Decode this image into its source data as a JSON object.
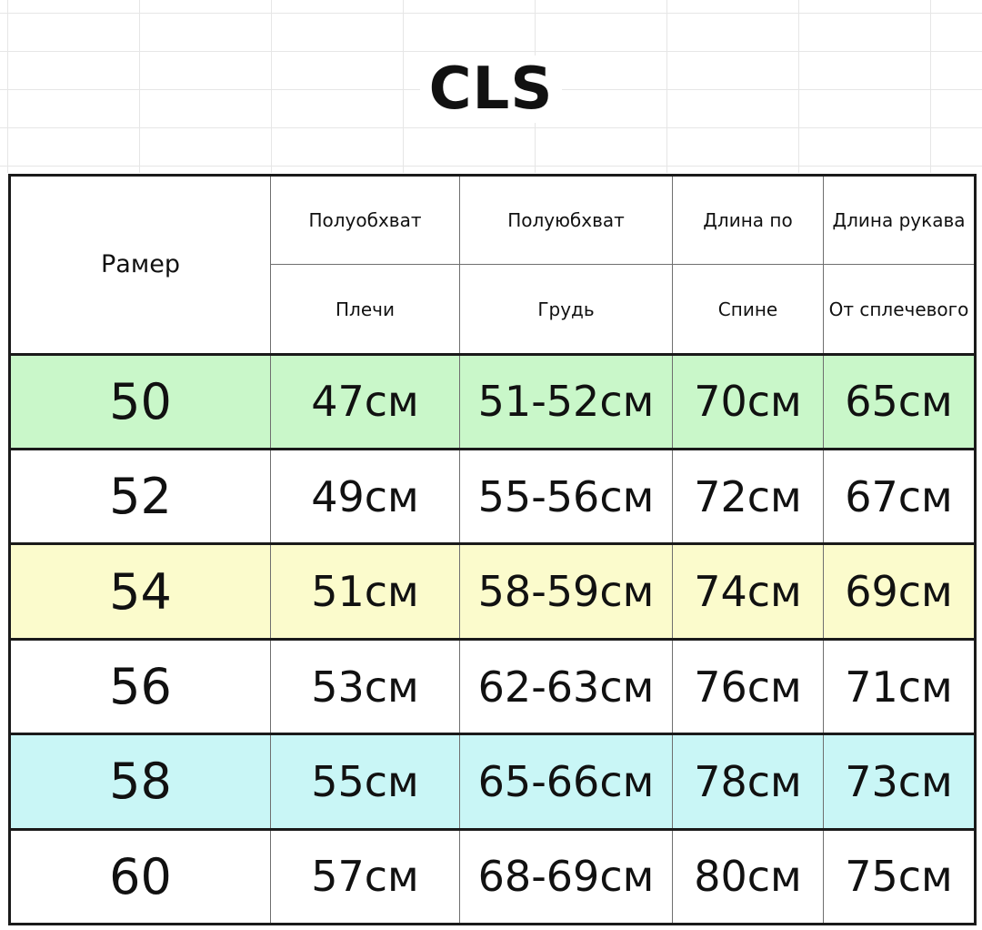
{
  "title": "CLS",
  "table": {
    "size_header": "Рамер",
    "columns": [
      {
        "top": "Полуобхват",
        "bottom": "Плечи"
      },
      {
        "top": "Полуюбхват",
        "bottom": "Грудь"
      },
      {
        "top": "Длина по",
        "bottom": "Спине"
      },
      {
        "top": "Длина рукава",
        "bottom": "От сплечевого"
      }
    ],
    "rows": [
      {
        "size": "50",
        "cells": [
          "47см",
          "51-52см",
          "70см",
          "65см"
        ],
        "highlight": "#c9f7c9"
      },
      {
        "size": "52",
        "cells": [
          "49см",
          "55-56см",
          "72см",
          "67см"
        ],
        "highlight": "#ffffff"
      },
      {
        "size": "54",
        "cells": [
          "51см",
          "58-59см",
          "74см",
          "69см"
        ],
        "highlight": "#fbfbcc"
      },
      {
        "size": "56",
        "cells": [
          "53см",
          "62-63см",
          "76см",
          "71см"
        ],
        "highlight": "#ffffff"
      },
      {
        "size": "58",
        "cells": [
          "55см",
          "65-66см",
          "78см",
          "73см"
        ],
        "highlight": "#c9f6f6"
      },
      {
        "size": "60",
        "cells": [
          "57см",
          "68-69см",
          "80см",
          "75см"
        ],
        "highlight": "#ffffff"
      }
    ]
  }
}
